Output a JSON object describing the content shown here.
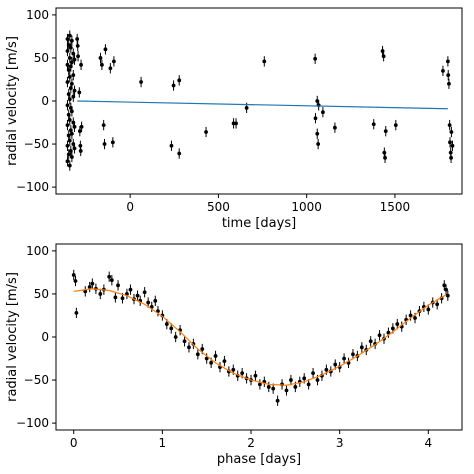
{
  "chart_data": [
    {
      "type": "scatter",
      "xlabel": "time [days]",
      "ylabel": "radial velocity [m/s]",
      "xlim": [
        -420,
        1880
      ],
      "ylim": [
        -108,
        108
      ],
      "xticks": [
        0,
        500,
        1000,
        1500
      ],
      "yticks": [
        -100,
        -50,
        0,
        50,
        100
      ],
      "colors": {
        "points": "#000000",
        "trend": "#1f77b4"
      },
      "series": [
        {
          "type": "errorbar",
          "points": [
            [
              -355,
              72,
              6
            ],
            [
              -355,
              58,
              6
            ],
            [
              -355,
              42,
              6
            ],
            [
              -355,
              22,
              6
            ],
            [
              -355,
              -5,
              6
            ],
            [
              -355,
              -28,
              6
            ],
            [
              -355,
              -52,
              6
            ],
            [
              -355,
              -70,
              6
            ],
            [
              -348,
              65,
              6
            ],
            [
              -348,
              36,
              6
            ],
            [
              -348,
              8,
              6
            ],
            [
              -348,
              -16,
              6
            ],
            [
              -348,
              -40,
              6
            ],
            [
              -348,
              -62,
              6
            ],
            [
              -342,
              76,
              6
            ],
            [
              -342,
              50,
              6
            ],
            [
              -342,
              28,
              6
            ],
            [
              -342,
              2,
              6
            ],
            [
              -342,
              -22,
              6
            ],
            [
              -342,
              -46,
              6
            ],
            [
              -342,
              -75,
              6
            ],
            [
              -336,
              62,
              6
            ],
            [
              -336,
              40,
              6
            ],
            [
              -336,
              15,
              6
            ],
            [
              -336,
              -8,
              6
            ],
            [
              -336,
              -34,
              6
            ],
            [
              -336,
              -58,
              6
            ],
            [
              -330,
              70,
              6
            ],
            [
              -330,
              45,
              6
            ],
            [
              -330,
              20,
              6
            ],
            [
              -330,
              -12,
              6
            ],
            [
              -330,
              -38,
              6
            ],
            [
              -330,
              -65,
              6
            ],
            [
              -322,
              55,
              6
            ],
            [
              -322,
              30,
              6
            ],
            [
              -322,
              5,
              6
            ],
            [
              -322,
              -25,
              6
            ],
            [
              -322,
              -50,
              6
            ],
            [
              -315,
              48,
              6
            ],
            [
              -315,
              12,
              6
            ],
            [
              -315,
              -30,
              6
            ],
            [
              -315,
              -55,
              6
            ],
            [
              -300,
              72,
              6
            ],
            [
              -297,
              64,
              6
            ],
            [
              -295,
              52,
              6
            ],
            [
              -288,
              10,
              6
            ],
            [
              -285,
              -35,
              6
            ],
            [
              -282,
              -52,
              6
            ],
            [
              -280,
              -58,
              6
            ],
            [
              -278,
              42,
              6
            ],
            [
              -275,
              -30,
              6
            ],
            [
              -168,
              50,
              6
            ],
            [
              -160,
              42,
              6
            ],
            [
              -150,
              -28,
              6
            ],
            [
              -145,
              -50,
              6
            ],
            [
              -140,
              60,
              6
            ],
            [
              -112,
              38,
              6
            ],
            [
              -98,
              -48,
              6
            ],
            [
              -92,
              46,
              6
            ],
            [
              62,
              22,
              6
            ],
            [
              234,
              -52,
              6
            ],
            [
              246,
              18,
              6
            ],
            [
              278,
              24,
              6
            ],
            [
              278,
              -61,
              6
            ],
            [
              430,
              -36,
              6
            ],
            [
              586,
              -26,
              6
            ],
            [
              600,
              -26,
              6
            ],
            [
              660,
              -8,
              6
            ],
            [
              760,
              46,
              6
            ],
            [
              1048,
              49,
              6
            ],
            [
              1050,
              -20,
              6
            ],
            [
              1060,
              0,
              6
            ],
            [
              1060,
              -38,
              6
            ],
            [
              1065,
              -50,
              6
            ],
            [
              1068,
              -5,
              6
            ],
            [
              1092,
              -13,
              6
            ],
            [
              1160,
              -31,
              6
            ],
            [
              1380,
              -27,
              6
            ],
            [
              1430,
              58,
              6
            ],
            [
              1436,
              52,
              6
            ],
            [
              1440,
              -60,
              6
            ],
            [
              1444,
              -66,
              6
            ],
            [
              1448,
              -35,
              6
            ],
            [
              1505,
              -28,
              6
            ],
            [
              1772,
              35,
              6
            ],
            [
              1800,
              46,
              6
            ],
            [
              1802,
              30,
              6
            ],
            [
              1806,
              20,
              6
            ],
            [
              1810,
              -28,
              6
            ],
            [
              1812,
              -48,
              6
            ],
            [
              1816,
              -60,
              6
            ],
            [
              1818,
              -66,
              6
            ],
            [
              1820,
              -36,
              6
            ],
            [
              1826,
              -52,
              6
            ]
          ]
        },
        {
          "type": "line",
          "x": [
            -300,
            1800
          ],
          "y": [
            0,
            -9
          ]
        }
      ]
    },
    {
      "type": "scatter",
      "xlabel": "phase [days]",
      "ylabel": "radial velocity [m/s]",
      "xlim": [
        -0.2,
        4.38
      ],
      "ylim": [
        -108,
        108
      ],
      "xticks": [
        0,
        1,
        2,
        3,
        4
      ],
      "yticks": [
        -100,
        -50,
        0,
        50,
        100
      ],
      "colors": {
        "points": "#000000",
        "model": "#ff7f0e"
      },
      "series": [
        {
          "type": "errorbar",
          "points": [
            [
              0.0,
              72,
              6
            ],
            [
              0.02,
              65,
              6
            ],
            [
              0.03,
              28,
              6
            ],
            [
              0.13,
              53,
              6
            ],
            [
              0.18,
              58,
              6
            ],
            [
              0.21,
              62,
              6
            ],
            [
              0.25,
              56,
              6
            ],
            [
              0.3,
              50,
              6
            ],
            [
              0.34,
              55,
              6
            ],
            [
              0.4,
              70,
              6
            ],
            [
              0.43,
              66,
              6
            ],
            [
              0.47,
              46,
              6
            ],
            [
              0.5,
              60,
              6
            ],
            [
              0.55,
              45,
              6
            ],
            [
              0.6,
              50,
              6
            ],
            [
              0.64,
              55,
              6
            ],
            [
              0.68,
              44,
              6
            ],
            [
              0.72,
              48,
              6
            ],
            [
              0.75,
              42,
              6
            ],
            [
              0.8,
              52,
              6
            ],
            [
              0.84,
              40,
              6
            ],
            [
              0.88,
              35,
              6
            ],
            [
              0.92,
              42,
              6
            ],
            [
              0.95,
              30,
              6
            ],
            [
              1.0,
              25,
              6
            ],
            [
              1.05,
              15,
              6
            ],
            [
              1.1,
              10,
              6
            ],
            [
              1.15,
              0,
              6
            ],
            [
              1.2,
              8,
              6
            ],
            [
              1.25,
              -5,
              6
            ],
            [
              1.3,
              -12,
              6
            ],
            [
              1.35,
              -8,
              6
            ],
            [
              1.4,
              -20,
              6
            ],
            [
              1.45,
              -14,
              6
            ],
            [
              1.5,
              -25,
              6
            ],
            [
              1.55,
              -30,
              6
            ],
            [
              1.6,
              -22,
              6
            ],
            [
              1.65,
              -35,
              6
            ],
            [
              1.7,
              -28,
              6
            ],
            [
              1.75,
              -40,
              6
            ],
            [
              1.8,
              -38,
              6
            ],
            [
              1.85,
              -45,
              6
            ],
            [
              1.9,
              -42,
              6
            ],
            [
              1.95,
              -48,
              6
            ],
            [
              2.0,
              -50,
              6
            ],
            [
              2.05,
              -45,
              6
            ],
            [
              2.1,
              -55,
              6
            ],
            [
              2.15,
              -52,
              6
            ],
            [
              2.2,
              -58,
              6
            ],
            [
              2.25,
              -60,
              6
            ],
            [
              2.3,
              -74,
              6
            ],
            [
              2.35,
              -55,
              6
            ],
            [
              2.4,
              -62,
              6
            ],
            [
              2.45,
              -50,
              6
            ],
            [
              2.5,
              -58,
              6
            ],
            [
              2.55,
              -52,
              6
            ],
            [
              2.6,
              -48,
              6
            ],
            [
              2.65,
              -55,
              6
            ],
            [
              2.7,
              -42,
              6
            ],
            [
              2.75,
              -50,
              6
            ],
            [
              2.8,
              -45,
              6
            ],
            [
              2.85,
              -38,
              6
            ],
            [
              2.9,
              -40,
              6
            ],
            [
              2.95,
              -32,
              6
            ],
            [
              3.0,
              -35,
              6
            ],
            [
              3.05,
              -25,
              6
            ],
            [
              3.1,
              -30,
              6
            ],
            [
              3.15,
              -20,
              6
            ],
            [
              3.2,
              -22,
              6
            ],
            [
              3.25,
              -12,
              6
            ],
            [
              3.3,
              -15,
              6
            ],
            [
              3.35,
              -5,
              6
            ],
            [
              3.4,
              -8,
              6
            ],
            [
              3.45,
              2,
              6
            ],
            [
              3.5,
              -2,
              6
            ],
            [
              3.55,
              5,
              6
            ],
            [
              3.6,
              10,
              6
            ],
            [
              3.65,
              15,
              6
            ],
            [
              3.7,
              12,
              6
            ],
            [
              3.75,
              20,
              6
            ],
            [
              3.8,
              25,
              6
            ],
            [
              3.85,
              22,
              6
            ],
            [
              3.9,
              30,
              6
            ],
            [
              3.95,
              35,
              6
            ],
            [
              4.0,
              32,
              6
            ],
            [
              4.05,
              40,
              6
            ],
            [
              4.1,
              38,
              6
            ],
            [
              4.15,
              45,
              6
            ],
            [
              4.18,
              60,
              6
            ],
            [
              4.2,
              55,
              6
            ],
            [
              4.22,
              48,
              6
            ]
          ]
        },
        {
          "type": "line",
          "x": [
            0.0,
            0.2,
            0.4,
            0.6,
            0.8,
            1.0,
            1.2,
            1.4,
            1.6,
            1.8,
            2.0,
            2.2,
            2.4,
            2.6,
            2.8,
            3.0,
            3.2,
            3.4,
            3.6,
            3.8,
            4.0,
            4.2
          ],
          "y": [
            53,
            56,
            54,
            48,
            38,
            24,
            6,
            -14,
            -30,
            -42,
            -50,
            -55,
            -56,
            -52,
            -44,
            -34,
            -22,
            -9,
            6,
            22,
            37,
            49
          ]
        }
      ]
    }
  ]
}
